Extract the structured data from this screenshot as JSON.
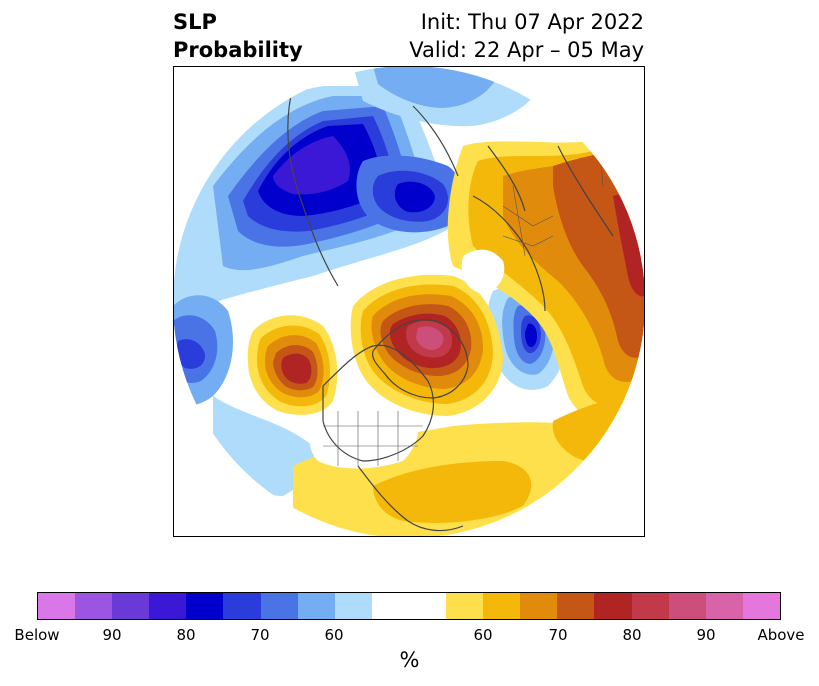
{
  "title": {
    "left_line1": "SLP",
    "left_line2": "Probability",
    "right_line1": "Init: Thu 07 Apr 2022",
    "right_line2": "Valid: 22 Apr – 05 May"
  },
  "colorbar": {
    "unit": "%",
    "colors": [
      "#d977e8",
      "#9c55e0",
      "#6a3ad9",
      "#3a18d6",
      "#0000cc",
      "#2a3ddb",
      "#4a74e6",
      "#74adf2",
      "#aedcfa",
      "#ffffff",
      "#ffffff",
      "#fde04c",
      "#f4b80a",
      "#e08b0c",
      "#c45616",
      "#b02424",
      "#c23a4a",
      "#cc4e7a",
      "#d963a9",
      "#e476dc"
    ],
    "labels": [
      "Below",
      "90",
      "80",
      "70",
      "60",
      "60",
      "70",
      "80",
      "90",
      "Above"
    ]
  },
  "map": {
    "icons": [
      "north-polar-projection",
      "coastlines",
      "country-borders",
      "us-state-borders"
    ]
  }
}
